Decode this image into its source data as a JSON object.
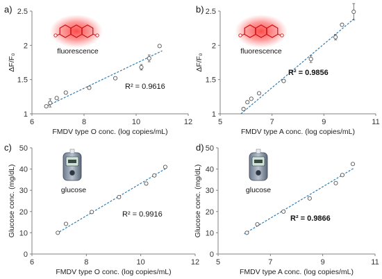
{
  "chart_data": [
    {
      "panel": "a)",
      "type": "scatter",
      "xlabel": "FMDV type O conc. (log copies/mL)",
      "ylabel": "ΔF/F₀",
      "xlim": [
        6,
        12
      ],
      "ylim": [
        1,
        2.5
      ],
      "xticks": [
        6,
        8,
        10,
        12
      ],
      "yticks": [
        1,
        1.5,
        2,
        2.5
      ],
      "points": [
        {
          "x": 6.55,
          "y": 1.11,
          "err": 0.02
        },
        {
          "x": 6.7,
          "y": 1.16,
          "err": 0.06
        },
        {
          "x": 6.95,
          "y": 1.23,
          "err": 0.02
        },
        {
          "x": 7.3,
          "y": 1.31,
          "err": 0.02
        },
        {
          "x": 8.2,
          "y": 1.38,
          "err": 0.02
        },
        {
          "x": 9.2,
          "y": 1.52,
          "err": 0.02
        },
        {
          "x": 10.2,
          "y": 1.68,
          "err": 0.04
        },
        {
          "x": 10.5,
          "y": 1.81,
          "err": 0.05
        },
        {
          "x": 10.9,
          "y": 1.99,
          "err": 0.02
        }
      ],
      "fit": {
        "x0": 6.5,
        "y0": 1.1,
        "x1": 11.0,
        "y1": 1.92
      },
      "r2": "R² = 0.9616",
      "r2_bold": false,
      "label": "fluorescence",
      "icon": "phenoxazine-fluorescence-icon"
    },
    {
      "panel": "b)",
      "type": "scatter",
      "xlabel": "FMDV type A conc. (log copies/mL)",
      "ylabel": "ΔF/F₀",
      "xlim": [
        5,
        11
      ],
      "ylim": [
        1,
        2.5
      ],
      "xticks": [
        5,
        7,
        9,
        11
      ],
      "yticks": [
        1,
        1.5,
        2,
        2.5
      ],
      "points": [
        {
          "x": 5.9,
          "y": 1.07,
          "err": 0.02
        },
        {
          "x": 6.05,
          "y": 1.17,
          "err": 0.02
        },
        {
          "x": 6.2,
          "y": 1.22,
          "err": 0.02
        },
        {
          "x": 6.5,
          "y": 1.3,
          "err": 0.02
        },
        {
          "x": 7.45,
          "y": 1.48,
          "err": 0.02
        },
        {
          "x": 8.5,
          "y": 1.8,
          "err": 0.05
        },
        {
          "x": 9.45,
          "y": 2.12,
          "err": 0.04
        },
        {
          "x": 9.7,
          "y": 2.3,
          "err": 0.02
        },
        {
          "x": 10.15,
          "y": 2.49,
          "err": 0.12
        }
      ],
      "fit": {
        "x0": 5.8,
        "y0": 1.0,
        "x1": 10.2,
        "y1": 2.4
      },
      "r2": "R² = 0.9856",
      "r2_bold": true,
      "label": "fluorescence",
      "icon": "phenoxazine-fluorescence-icon"
    },
    {
      "panel": "c)",
      "type": "scatter",
      "xlabel": "FMDV type O conc. (log copies/mL)",
      "ylabel": "Glucose conc. (mg/dL)",
      "xlim": [
        6,
        12
      ],
      "ylim": [
        0,
        50
      ],
      "xticks": [
        6,
        8,
        10,
        12
      ],
      "yticks": [
        0,
        10,
        20,
        30,
        40,
        50
      ],
      "points": [
        {
          "x": 6.95,
          "y": 10.0,
          "err": 0.4
        },
        {
          "x": 7.25,
          "y": 14.2,
          "err": 0.4
        },
        {
          "x": 8.2,
          "y": 19.8,
          "err": 0.4
        },
        {
          "x": 9.2,
          "y": 26.8,
          "err": 0.4
        },
        {
          "x": 10.2,
          "y": 33.2,
          "err": 0.4
        },
        {
          "x": 10.5,
          "y": 37.0,
          "err": 0.4
        },
        {
          "x": 10.9,
          "y": 41.0,
          "err": 0.4
        }
      ],
      "fit": {
        "x0": 6.9,
        "y0": 9.6,
        "x1": 10.95,
        "y1": 40.5
      },
      "r2": "R² = 0.9916",
      "r2_bold": false,
      "label": "glucose",
      "icon": "glucose-meter-icon"
    },
    {
      "panel": "d)",
      "type": "scatter",
      "xlabel": "FMDV type A conc. (log copies/mL)",
      "ylabel": "Glucose conc. (mg/dL)",
      "xlim": [
        5,
        11
      ],
      "ylim": [
        0,
        50
      ],
      "xticks": [
        5,
        7,
        9,
        11
      ],
      "yticks": [
        0,
        10,
        20,
        30,
        40,
        50
      ],
      "points": [
        {
          "x": 6.1,
          "y": 10.0,
          "err": 0.4
        },
        {
          "x": 6.5,
          "y": 14.0,
          "err": 0.4
        },
        {
          "x": 7.5,
          "y": 20.0,
          "err": 0.4
        },
        {
          "x": 8.5,
          "y": 26.2,
          "err": 0.4
        },
        {
          "x": 9.5,
          "y": 33.4,
          "err": 0.4
        },
        {
          "x": 9.75,
          "y": 37.2,
          "err": 0.4
        },
        {
          "x": 10.15,
          "y": 42.4,
          "err": 0.6
        }
      ],
      "fit": {
        "x0": 6.0,
        "y0": 9.5,
        "x1": 10.2,
        "y1": 40.5
      },
      "r2": "R² = 0.9866",
      "r2_bold": true,
      "label": "glucose",
      "icon": "glucose-meter-icon"
    }
  ],
  "colors": {
    "fit_line": "#2e7ab0",
    "fluorescence_glow": "#ff3b3b",
    "molecule": "#cc1111"
  }
}
